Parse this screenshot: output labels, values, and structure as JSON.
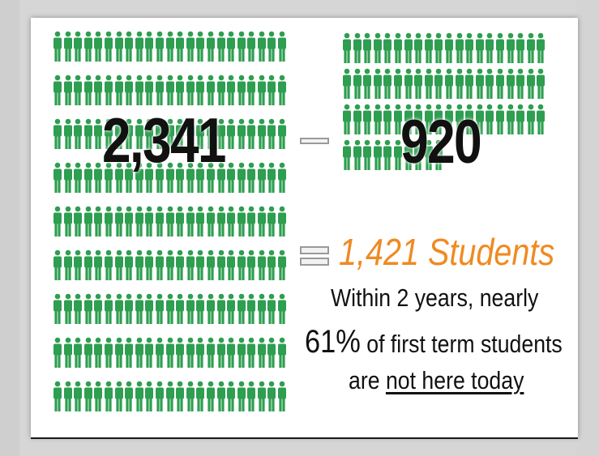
{
  "slide": {
    "total_students": "2,341",
    "remaining_students": "920",
    "result": "1,421 Students",
    "line1": "Within 2 years, nearly",
    "line2_percent": "61%",
    "line2_rest": " of first term students",
    "line3_prefix": "are ",
    "line3_underlined": "not here today",
    "accent_color": "#f08a22",
    "person_icon_color": "#2e9e50",
    "person_icon_name": "person-icon"
  }
}
